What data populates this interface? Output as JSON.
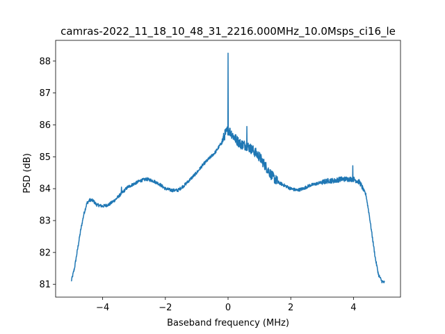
{
  "chart_data": {
    "type": "line",
    "title": "camras-2022_11_18_10_48_31_2216.000MHz_10.0Msps_ci16_le",
    "xlabel": "Baseband frequency (MHz)",
    "ylabel": "PSD (dB)",
    "xlim": [
      -5.5,
      5.5
    ],
    "ylim": [
      80.6,
      88.65
    ],
    "xticks": [
      -4,
      -2,
      0,
      2,
      4
    ],
    "xtick_labels": [
      "−4",
      "−2",
      "0",
      "2",
      "4"
    ],
    "yticks": [
      81,
      82,
      83,
      84,
      85,
      86,
      87,
      88
    ],
    "ytick_labels": [
      "81",
      "82",
      "83",
      "84",
      "85",
      "86",
      "87",
      "88"
    ],
    "grid": false,
    "color": "#1f77b4",
    "series": [
      {
        "x": [
          -5.0,
          -4.9,
          -4.8,
          -4.7,
          -4.6,
          -4.5,
          -4.4,
          -4.3,
          -4.2,
          -4.0,
          -3.8,
          -3.6,
          -3.4,
          -3.2,
          -3.0,
          -2.8,
          -2.6,
          -2.4,
          -2.2,
          -2.0,
          -1.8,
          -1.6,
          -1.4,
          -1.2,
          -1.0,
          -0.8,
          -0.6,
          -0.4,
          -0.2,
          -0.1,
          0.0,
          0.1,
          0.2,
          0.4,
          0.6,
          0.8,
          1.0,
          1.2,
          1.4,
          1.6,
          1.8,
          2.0,
          2.2,
          2.4,
          2.6,
          2.8,
          3.0,
          3.2,
          3.4,
          3.6,
          3.8,
          4.0,
          4.2,
          4.4,
          4.5,
          4.6,
          4.7,
          4.8,
          4.9,
          5.0
        ],
        "y": [
          81.1,
          81.5,
          82.1,
          82.7,
          83.2,
          83.55,
          83.65,
          83.62,
          83.5,
          83.45,
          83.5,
          83.65,
          83.85,
          84.05,
          84.15,
          84.25,
          84.3,
          84.25,
          84.15,
          84.0,
          83.95,
          83.95,
          84.1,
          84.3,
          84.5,
          84.75,
          84.95,
          85.15,
          85.45,
          85.7,
          85.85,
          85.75,
          85.6,
          85.4,
          85.35,
          85.2,
          85.0,
          84.7,
          84.4,
          84.2,
          84.1,
          84.0,
          83.95,
          84.0,
          84.1,
          84.15,
          84.2,
          84.25,
          84.25,
          84.3,
          84.3,
          84.3,
          84.2,
          83.8,
          83.2,
          82.5,
          81.8,
          81.3,
          81.1,
          81.05
        ]
      }
    ],
    "spikes": [
      {
        "x": 0.0,
        "y": 88.25
      },
      {
        "x": 3.98,
        "y": 84.72
      },
      {
        "x": -3.4,
        "y": 84.05
      },
      {
        "x": 0.6,
        "y": 85.95
      }
    ]
  }
}
